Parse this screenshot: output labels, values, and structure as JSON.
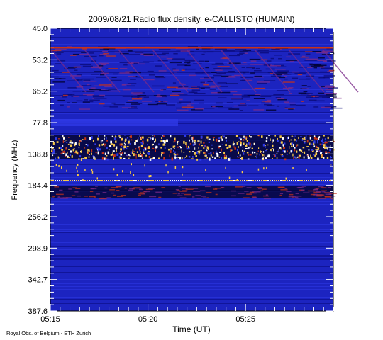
{
  "chart_data": {
    "type": "heatmap",
    "title": "2009/08/21  Radio flux density, e-CALLISTO (HUMAIN)",
    "xlabel": "Time (UT)",
    "ylabel": "Frequency (MHz)",
    "x_ticks": [
      "05:15",
      "05:20",
      "05:25"
    ],
    "x_range": [
      "05:15",
      "05:29:30"
    ],
    "y_ticks": [
      "45.0",
      "53.2",
      "65.2",
      "77.8",
      "138.8",
      "184.4",
      "256.2",
      "298.9",
      "342.7",
      "387.6"
    ],
    "y_range": [
      45.0,
      387.6
    ],
    "y_inverted": true,
    "colormap": [
      "#0a0a78",
      "#1a22c8",
      "#2f3ae6",
      "#7a2a8a",
      "#c83218",
      "#f5c84a",
      "#ffffff"
    ],
    "background_color": "#1c24c0",
    "features": [
      {
        "name": "intense band",
        "freq_range": [
          "77.8",
          "138.8"
        ],
        "time_range": [
          "05:15",
          "05:29:30"
        ]
      },
      {
        "name": "bright line",
        "freq": "184.4",
        "time_range": [
          "05:15",
          "05:29:30"
        ]
      },
      {
        "name": "drifting structures",
        "freq_range": [
          "45.0",
          "65.2"
        ],
        "time_range": [
          "05:15",
          "05:29:30"
        ]
      }
    ]
  },
  "footer": "Royal Obs. of Belgium - ETH Zurich"
}
